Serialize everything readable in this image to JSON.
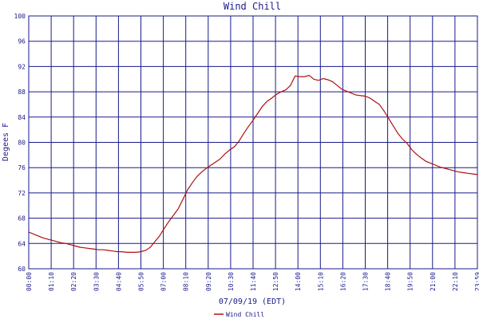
{
  "chart_data": {
    "type": "line",
    "title": "Wind Chill",
    "xlabel": "07/09/19 (EDT)",
    "ylabel": "Degees F",
    "ylim": [
      60,
      100
    ],
    "yticks": [
      "60",
      "64",
      "68",
      "72",
      "76",
      "80",
      "84",
      "88",
      "92",
      "96",
      "100"
    ],
    "xticks": [
      "00:00",
      "01:10",
      "02:20",
      "03:30",
      "04:40",
      "05:50",
      "07:00",
      "08:10",
      "09:20",
      "10:30",
      "11:40",
      "12:50",
      "14:00",
      "15:10",
      "16:20",
      "17:30",
      "18:40",
      "19:50",
      "21:00",
      "22:10",
      "23:59"
    ],
    "grid": true,
    "colors": {
      "series": "#b01010",
      "grid": "#1a1a8c",
      "text": "#1a1a8c",
      "background": "#ffffff"
    },
    "series": [
      {
        "name": "Wind Chill",
        "x": [
          0,
          0.25,
          0.5,
          0.75,
          1,
          1.25,
          1.5,
          1.75,
          2,
          2.25,
          2.5,
          2.75,
          3,
          3.25,
          3.5,
          3.75,
          4,
          4.25,
          4.5,
          4.75,
          5,
          5.25,
          5.5,
          5.75,
          6,
          6.25,
          6.5,
          6.75,
          7,
          7.25,
          7.5,
          7.75,
          8,
          8.25,
          8.5,
          8.75,
          9,
          9.25,
          9.5,
          9.75,
          10,
          10.25,
          10.5,
          10.75,
          11,
          11.25,
          11.5,
          11.75,
          12,
          12.25,
          12.5,
          12.75,
          13,
          13.25,
          13.5,
          13.75,
          14,
          14.25,
          14.5,
          14.75,
          15,
          15.25,
          15.5,
          15.75,
          16,
          16.25,
          16.5,
          16.75,
          17,
          17.25,
          17.5,
          17.75,
          18,
          18.25,
          18.5,
          18.75,
          19,
          19.25,
          19.5,
          19.75,
          20,
          20.25,
          20.5,
          20.75,
          21,
          21.25,
          21.5,
          21.75,
          22,
          22.25,
          22.5,
          22.75,
          23,
          23.25,
          23.5,
          23.75,
          24
        ],
        "values": [
          65.8,
          65.5,
          65.2,
          64.9,
          64.7,
          64.5,
          64.3,
          64.1,
          64.0,
          63.8,
          63.6,
          63.4,
          63.3,
          63.2,
          63.1,
          63.0,
          63.0,
          62.9,
          62.8,
          62.7,
          62.7,
          62.6,
          62.6,
          62.6,
          62.7,
          62.9,
          63.4,
          64.3,
          65.2,
          66.4,
          67.5,
          68.5,
          69.5,
          71.0,
          72.5,
          73.6,
          74.6,
          75.3,
          75.9,
          76.4,
          76.9,
          77.4,
          78.2,
          78.8,
          79.3,
          80.2,
          81.4,
          82.5,
          83.5,
          84.6,
          85.7,
          86.5,
          87.0,
          87.6,
          88.0,
          88.3,
          89.0,
          90.5,
          90.4,
          90.4,
          90.6,
          90.0,
          89.8,
          90.1,
          89.9,
          89.6,
          89.0,
          88.4,
          88.1,
          87.8,
          87.5,
          87.4,
          87.3,
          87.0,
          86.5,
          86.0,
          85.0,
          83.8,
          82.6,
          81.4,
          80.5,
          79.8,
          78.8,
          78.1,
          77.5,
          77.0,
          76.7,
          76.4,
          76.1,
          75.9,
          75.7,
          75.5,
          75.3,
          75.2,
          75.1,
          75.0,
          74.9
        ]
      }
    ]
  }
}
